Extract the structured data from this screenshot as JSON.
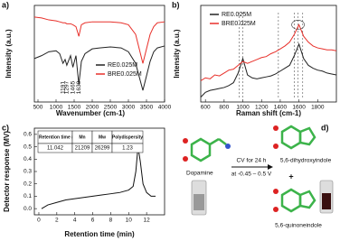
{
  "chart_data": [
    {
      "type": "line",
      "panel": "a)",
      "x_label": "Wavenumber (cm-1)",
      "y_label": "Intensity (a.u.)",
      "x": [
        400,
        600,
        800,
        1000,
        1100,
        1191,
        1250,
        1297,
        1400,
        1465,
        1550,
        1630,
        1700,
        1800,
        2000,
        2200,
        2500,
        2800,
        3000,
        3200,
        3400,
        3600,
        3700,
        3800,
        4000
      ],
      "series": [
        {
          "name": "RE0.025M",
          "color": "#222222",
          "values": [
            45,
            48,
            52,
            53,
            50,
            40,
            44,
            38,
            48,
            36,
            48,
            18,
            42,
            50,
            55,
            56,
            57,
            56,
            52,
            40,
            12,
            42,
            52,
            56,
            58
          ]
        },
        {
          "name": "BRE0.025M",
          "color": "#e8302a",
          "values": [
            88,
            87,
            85,
            84,
            83,
            82,
            82,
            81,
            81,
            80,
            78,
            68,
            80,
            82,
            83,
            83,
            83,
            82,
            80,
            70,
            40,
            70,
            78,
            82,
            83
          ]
        }
      ],
      "annotations": [
        1191,
        1297,
        1465,
        1630
      ],
      "xlim": [
        400,
        4000
      ],
      "xticks": [
        500,
        1000,
        1500,
        2000,
        2500,
        3000,
        3500,
        4000
      ],
      "ylim": [
        0,
        100
      ]
    },
    {
      "type": "line",
      "panel": "b)",
      "x_label": "Raman shift (cm-1)",
      "y_label": "Intensity (a.u.)",
      "x": [
        550,
        600,
        650,
        700,
        750,
        800,
        850,
        900,
        950,
        1000,
        1050,
        1100,
        1150,
        1200,
        1250,
        1300,
        1350,
        1400,
        1450,
        1500,
        1550,
        1600,
        1650,
        1700,
        1750,
        1800,
        1850,
        1900,
        1950,
        2000
      ],
      "series": [
        {
          "name": "RE0.025M",
          "color": "#222222",
          "values": [
            5,
            10,
            12,
            13,
            14,
            15,
            17,
            20,
            30,
            45,
            28,
            25,
            24,
            25,
            26,
            27,
            29,
            32,
            35,
            38,
            48,
            60,
            45,
            38,
            35,
            33,
            32,
            30,
            29,
            28
          ]
        },
        {
          "name": "BRE0.025M",
          "color": "#e8302a",
          "values": [
            22,
            25,
            24,
            28,
            27,
            30,
            33,
            34,
            38,
            42,
            40,
            42,
            44,
            46,
            47,
            50,
            52,
            55,
            58,
            62,
            70,
            80,
            68,
            62,
            58,
            56,
            55,
            54,
            54,
            53
          ]
        }
      ],
      "reference_lines": [
        960,
        1000,
        1380,
        1550,
        1590,
        1640
      ],
      "xlim": [
        550,
        2000
      ],
      "xticks": [
        600,
        800,
        1000,
        1200,
        1400,
        1600,
        1800
      ],
      "ylim": [
        0,
        100
      ]
    },
    {
      "type": "line",
      "panel": "c)",
      "x_label": "Retention time (min)",
      "y_label": "Detector response (MV)",
      "x": [
        0.3,
        1,
        2,
        3,
        4,
        5,
        6,
        7,
        8,
        9,
        10,
        10.5,
        10.8,
        11.04,
        11.3,
        11.6,
        12,
        12.5,
        13
      ],
      "values": [
        0,
        0.03,
        0.05,
        0.07,
        0.08,
        0.09,
        0.1,
        0.11,
        0.12,
        0.13,
        0.15,
        0.18,
        0.3,
        0.5,
        0.38,
        0.2,
        0.13,
        0.1,
        0.1
      ],
      "color": "#111111",
      "xlim": [
        -0.5,
        14
      ],
      "xticks": [
        0,
        2,
        4,
        6,
        8,
        10,
        12
      ],
      "ylim": [
        -0.05,
        0.65
      ],
      "yticks": [
        {
          "value": 0,
          "label": "0.0"
        },
        0.1,
        0.2,
        0.3,
        0.4,
        0.5,
        0.6
      ],
      "table": {
        "header": [
          "Retention time (min)",
          "Mn",
          "Mw",
          "Polydispersity"
        ],
        "rows": [
          [
            "11.042",
            "21209",
            "26299",
            "1.23"
          ]
        ]
      }
    }
  ],
  "scheme": {
    "panel": "d)",
    "reactant": "Dopamine",
    "condition_1": "CV for 24 h",
    "condition_2": "at -0.45 – 0.5 V",
    "product_1": "5,6-dihydroxyindole",
    "plus": "+",
    "product_2": "5,6-quinoneindole"
  }
}
